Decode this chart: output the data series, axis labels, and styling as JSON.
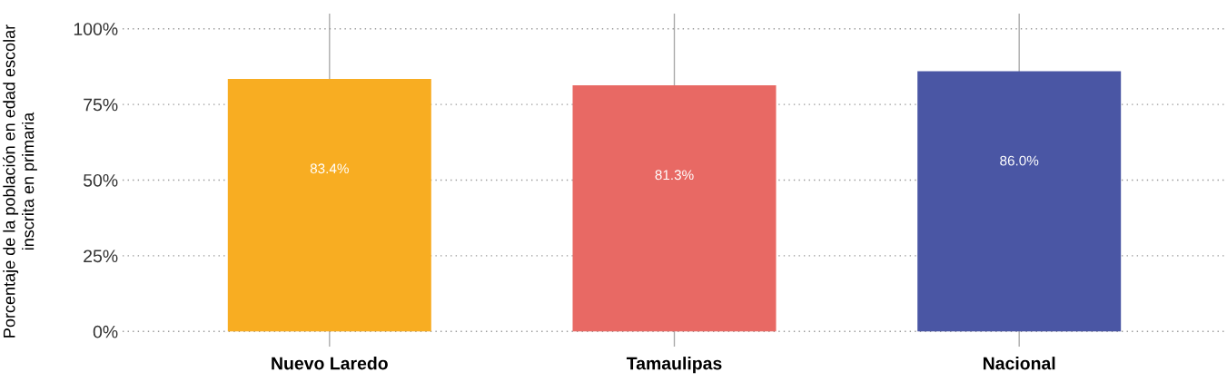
{
  "chart_data": {
    "type": "bar",
    "ylabel": "Porcentaje de la población en edad escolar\ninscrita en primaria",
    "categories": [
      "Nuevo Laredo",
      "Tamaulipas",
      "Nacional"
    ],
    "values": [
      83.4,
      81.3,
      86.0
    ],
    "colors": [
      "#f8ad22",
      "#e86964",
      "#4a56a4"
    ],
    "value_labels": [
      "83.4%",
      "81.3%",
      "86.0%"
    ],
    "ylim": [
      -5,
      105
    ],
    "yticks": [
      {
        "value": 0,
        "label": "0%"
      },
      {
        "value": 25,
        "label": "25%"
      },
      {
        "value": 50,
        "label": "50%"
      },
      {
        "value": 75,
        "label": "75%"
      },
      {
        "value": 100,
        "label": "100%"
      }
    ],
    "grid": true,
    "legend": false
  }
}
